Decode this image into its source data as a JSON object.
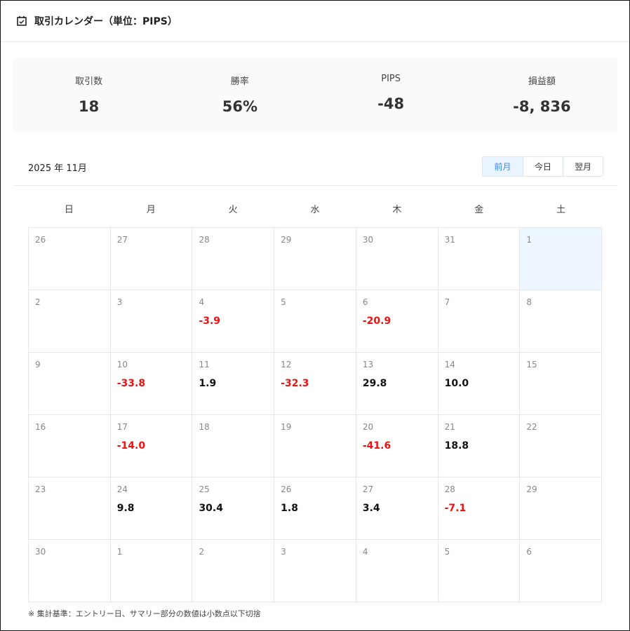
{
  "header": {
    "title": "取引カレンダー（単位：PIPS）",
    "icon": "calendar-check-icon"
  },
  "summary": [
    {
      "label": "取引数",
      "value": "18"
    },
    {
      "label": "勝率",
      "value": "56%"
    },
    {
      "label": "PIPS",
      "value": "-48"
    },
    {
      "label": "損益額",
      "value": "-8, 836"
    }
  ],
  "month_label": "2025 年 11月",
  "nav": {
    "prev": "前月",
    "today": "今日",
    "next": "翌月"
  },
  "weekdays": [
    "日",
    "月",
    "火",
    "水",
    "木",
    "金",
    "土"
  ],
  "colors": {
    "negative": "#ee1111",
    "positive": "#111111",
    "accent": "#3b8be8",
    "today_bg": "#eef6ff"
  },
  "weeks": [
    [
      {
        "d": "26"
      },
      {
        "d": "27"
      },
      {
        "d": "28"
      },
      {
        "d": "29"
      },
      {
        "d": "30"
      },
      {
        "d": "31"
      },
      {
        "d": "1",
        "today": true
      }
    ],
    [
      {
        "d": "2"
      },
      {
        "d": "3"
      },
      {
        "d": "4",
        "p": "-3.9"
      },
      {
        "d": "5"
      },
      {
        "d": "6",
        "p": "-20.9"
      },
      {
        "d": "7"
      },
      {
        "d": "8"
      }
    ],
    [
      {
        "d": "9"
      },
      {
        "d": "10",
        "p": "-33.8"
      },
      {
        "d": "11",
        "p": "1.9"
      },
      {
        "d": "12",
        "p": "-32.3"
      },
      {
        "d": "13",
        "p": "29.8"
      },
      {
        "d": "14",
        "p": "10.0"
      },
      {
        "d": "15"
      }
    ],
    [
      {
        "d": "16"
      },
      {
        "d": "17",
        "p": "-14.0"
      },
      {
        "d": "18"
      },
      {
        "d": "19"
      },
      {
        "d": "20",
        "p": "-41.6"
      },
      {
        "d": "21",
        "p": "18.8"
      },
      {
        "d": "22"
      }
    ],
    [
      {
        "d": "23"
      },
      {
        "d": "24",
        "p": "9.8"
      },
      {
        "d": "25",
        "p": "30.4"
      },
      {
        "d": "26",
        "p": "1.8"
      },
      {
        "d": "27",
        "p": "3.4"
      },
      {
        "d": "28",
        "p": "-7.1"
      },
      {
        "d": "29"
      }
    ],
    [
      {
        "d": "30"
      },
      {
        "d": "1"
      },
      {
        "d": "2"
      },
      {
        "d": "3"
      },
      {
        "d": "4"
      },
      {
        "d": "5"
      },
      {
        "d": "6"
      }
    ]
  ],
  "footnote": "※ 集計基準：エントリー日、サマリー部分の数値は小数点以下切捨"
}
